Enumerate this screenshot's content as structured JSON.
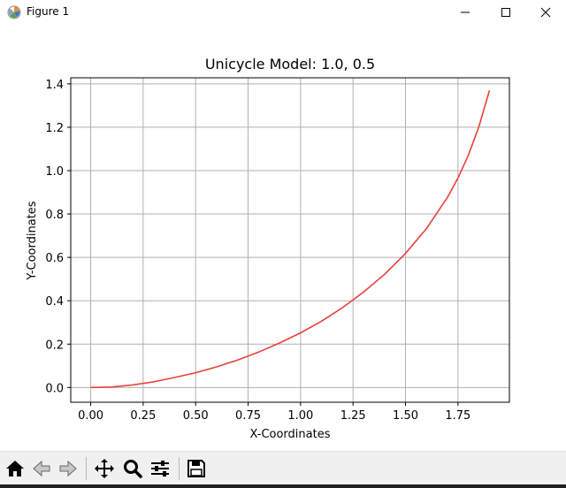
{
  "window": {
    "title": "Figure 1",
    "icon": "matplotlib-icon",
    "controls": [
      "minimize-icon",
      "maximize-icon",
      "close-icon"
    ]
  },
  "chart_data": {
    "type": "line",
    "title": "Unicycle Model: 1.0, 0.5",
    "xlabel": "X-Coordinates",
    "ylabel": "Y-Coordinates",
    "xlim": [
      -0.095,
      1.995
    ],
    "ylim": [
      -0.068,
      1.428
    ],
    "xticks": [
      0.0,
      0.25,
      0.5,
      0.75,
      1.0,
      1.25,
      1.5,
      1.75
    ],
    "xtick_labels": [
      "0.00",
      "0.25",
      "0.50",
      "0.75",
      "1.00",
      "1.25",
      "1.50",
      "1.75"
    ],
    "yticks": [
      0.0,
      0.2,
      0.4,
      0.6,
      0.8,
      1.0,
      1.2,
      1.4
    ],
    "ytick_labels": [
      "0.0",
      "0.2",
      "0.4",
      "0.6",
      "0.8",
      "1.0",
      "1.2",
      "1.4"
    ],
    "grid": true,
    "line_color": "#e8403c",
    "series": [
      {
        "x": [
          0.0,
          0.1,
          0.2,
          0.3,
          0.4,
          0.5,
          0.6,
          0.7,
          0.8,
          0.9,
          1.0,
          1.1,
          1.2,
          1.3,
          1.4,
          1.5,
          1.6,
          1.7,
          1.75,
          1.8,
          1.85,
          1.9
        ],
        "y": [
          0.0,
          0.002,
          0.012,
          0.026,
          0.046,
          0.068,
          0.095,
          0.127,
          0.163,
          0.205,
          0.252,
          0.306,
          0.368,
          0.44,
          0.522,
          0.618,
          0.733,
          0.877,
          0.966,
          1.072,
          1.204,
          1.37
        ]
      }
    ]
  },
  "toolbar": {
    "buttons": [
      "home-icon",
      "back-icon",
      "forward-icon",
      "pan-icon",
      "zoom-icon",
      "configure-subplots-icon",
      "save-icon"
    ]
  }
}
